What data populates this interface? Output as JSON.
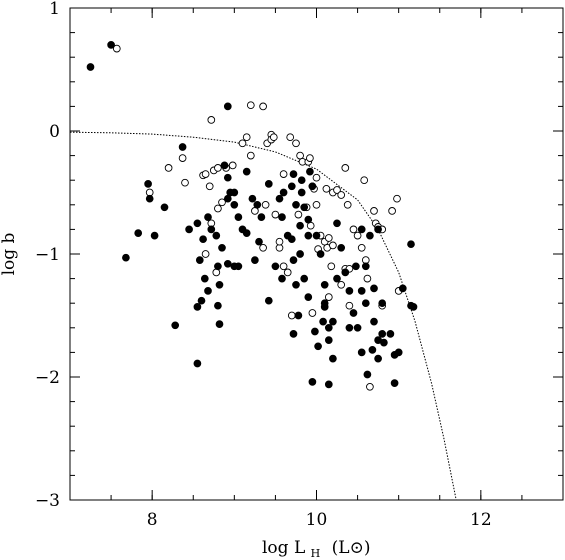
{
  "chart_data": {
    "type": "scatter",
    "xlabel": "log L",
    "xlabel_subscript": "H",
    "xlabel_unit": "(L⊙)",
    "ylabel": "log b",
    "xlim": [
      7.0,
      13.0
    ],
    "ylim": [
      -3.0,
      1.0
    ],
    "x_ticks": [
      8,
      10,
      12
    ],
    "x_tick_labels": [
      "8",
      "10",
      "12"
    ],
    "y_ticks": [
      1,
      0,
      -1,
      -2,
      -3
    ],
    "y_tick_labels": [
      "1",
      "0",
      "−1",
      "−2",
      "−3"
    ],
    "x_minor_step": 0.5,
    "y_minor_step": 0.2,
    "grid": false,
    "legend": "none",
    "marker_color": "#000000",
    "series": [
      {
        "marker": "filled-circle",
        "points": [
          [
            7.5,
            0.7
          ],
          [
            7.25,
            0.52
          ],
          [
            7.68,
            -1.03
          ],
          [
            7.83,
            -0.83
          ],
          [
            7.97,
            -0.55
          ],
          [
            8.03,
            -0.85
          ],
          [
            8.15,
            -0.62
          ],
          [
            7.95,
            -0.43
          ],
          [
            8.37,
            -0.13
          ],
          [
            8.45,
            -0.8
          ],
          [
            8.55,
            -0.75
          ],
          [
            8.62,
            -0.88
          ],
          [
            8.58,
            -1.05
          ],
          [
            8.64,
            -1.2
          ],
          [
            8.6,
            -1.38
          ],
          [
            8.68,
            -1.3
          ],
          [
            8.55,
            -1.43
          ],
          [
            8.8,
            -1.1
          ],
          [
            8.82,
            -1.25
          ],
          [
            8.8,
            -1.42
          ],
          [
            8.82,
            -1.57
          ],
          [
            8.28,
            -1.58
          ],
          [
            8.55,
            -1.89
          ],
          [
            8.68,
            -0.7
          ],
          [
            8.72,
            -0.8
          ],
          [
            8.78,
            -0.85
          ],
          [
            8.85,
            -0.95
          ],
          [
            8.88,
            -0.28
          ],
          [
            8.92,
            -0.38
          ],
          [
            8.95,
            -0.5
          ],
          [
            9.0,
            -0.5
          ],
          [
            8.92,
            -0.55
          ],
          [
            9.0,
            -0.6
          ],
          [
            9.05,
            -0.7
          ],
          [
            9.1,
            -0.8
          ],
          [
            9.15,
            -0.83
          ],
          [
            8.92,
            -1.08
          ],
          [
            9.0,
            -1.1
          ],
          [
            9.05,
            -1.1
          ],
          [
            8.92,
            0.2
          ],
          [
            9.15,
            -0.33
          ],
          [
            9.22,
            -0.55
          ],
          [
            9.28,
            -0.6
          ],
          [
            9.33,
            -0.7
          ],
          [
            9.3,
            -0.9
          ],
          [
            9.25,
            -1.05
          ],
          [
            9.42,
            -1.38
          ],
          [
            9.5,
            -1.1
          ],
          [
            9.55,
            -0.55
          ],
          [
            9.58,
            -0.7
          ],
          [
            9.65,
            -0.85
          ],
          [
            9.72,
            -1.05
          ],
          [
            9.75,
            -1.25
          ],
          [
            9.78,
            -1.5
          ],
          [
            9.72,
            -1.65
          ],
          [
            9.42,
            -0.43
          ],
          [
            9.6,
            -0.5
          ],
          [
            9.7,
            -0.45
          ],
          [
            9.82,
            -0.5
          ],
          [
            9.85,
            -0.62
          ],
          [
            9.9,
            -0.72
          ],
          [
            9.9,
            -0.85
          ],
          [
            9.85,
            -1.2
          ],
          [
            9.9,
            -1.35
          ],
          [
            9.98,
            -1.63
          ],
          [
            9.92,
            -0.33
          ],
          [
            9.82,
            -0.4
          ],
          [
            10.0,
            -0.85
          ],
          [
            10.05,
            -1.0
          ],
          [
            10.1,
            -1.25
          ],
          [
            10.1,
            -1.4
          ],
          [
            10.15,
            -1.6
          ],
          [
            10.2,
            -1.55
          ],
          [
            10.2,
            -1.85
          ],
          [
            10.15,
            -1.7
          ],
          [
            10.25,
            -1.2
          ],
          [
            10.25,
            -0.75
          ],
          [
            10.3,
            -0.95
          ],
          [
            10.35,
            -1.15
          ],
          [
            10.4,
            -1.3
          ],
          [
            10.45,
            -1.48
          ],
          [
            10.5,
            -1.6
          ],
          [
            10.55,
            -1.3
          ],
          [
            10.6,
            -1.4
          ],
          [
            10.7,
            -1.28
          ],
          [
            10.7,
            -1.55
          ],
          [
            10.75,
            -1.7
          ],
          [
            10.8,
            -1.4
          ],
          [
            10.8,
            -1.65
          ],
          [
            10.55,
            -1.8
          ],
          [
            10.62,
            -1.98
          ],
          [
            10.68,
            -1.78
          ],
          [
            10.75,
            -1.85
          ],
          [
            10.82,
            -1.72
          ],
          [
            10.95,
            -1.82
          ],
          [
            10.9,
            -1.65
          ],
          [
            10.6,
            -1.1
          ],
          [
            10.55,
            -0.8
          ],
          [
            10.65,
            -0.85
          ],
          [
            10.75,
            -0.8
          ],
          [
            11.15,
            -0.92
          ],
          [
            11.15,
            -1.42
          ],
          [
            11.18,
            -1.43
          ],
          [
            11.0,
            -1.8
          ],
          [
            10.95,
            -2.05
          ],
          [
            10.15,
            -2.06
          ],
          [
            9.95,
            -2.04
          ],
          [
            11.05,
            -1.28
          ],
          [
            10.48,
            -1.1
          ],
          [
            10.4,
            -1.6
          ],
          [
            10.1,
            -1.43
          ],
          [
            10.08,
            -1.55
          ],
          [
            9.8,
            -0.77
          ],
          [
            9.8,
            -1.0
          ],
          [
            9.75,
            -0.6
          ],
          [
            9.95,
            -0.45
          ],
          [
            9.72,
            -0.35
          ],
          [
            9.7,
            -0.88
          ],
          [
            9.58,
            -1.2
          ],
          [
            10.02,
            -1.75
          ]
        ]
      },
      {
        "marker": "open-circle",
        "points": [
          [
            7.57,
            0.67
          ],
          [
            7.97,
            -0.5
          ],
          [
            8.2,
            -0.3
          ],
          [
            8.37,
            -0.22
          ],
          [
            8.4,
            -0.42
          ],
          [
            8.62,
            -0.36
          ],
          [
            8.65,
            -0.35
          ],
          [
            8.75,
            -0.32
          ],
          [
            8.8,
            -0.3
          ],
          [
            8.7,
            -0.45
          ],
          [
            8.72,
            -0.75
          ],
          [
            8.65,
            -1.0
          ],
          [
            8.78,
            -1.15
          ],
          [
            8.8,
            -0.63
          ],
          [
            8.85,
            -0.58
          ],
          [
            8.9,
            -0.3
          ],
          [
            8.98,
            -0.28
          ],
          [
            8.72,
            0.09
          ],
          [
            9.1,
            -0.1
          ],
          [
            9.15,
            -0.05
          ],
          [
            9.2,
            0.21
          ],
          [
            9.35,
            0.2
          ],
          [
            9.2,
            -0.2
          ],
          [
            9.25,
            -0.65
          ],
          [
            9.35,
            -0.95
          ],
          [
            9.4,
            -0.1
          ],
          [
            9.45,
            -0.03
          ],
          [
            9.45,
            -0.07
          ],
          [
            9.48,
            -0.05
          ],
          [
            9.5,
            -0.68
          ],
          [
            9.55,
            -0.95
          ],
          [
            9.6,
            -1.1
          ],
          [
            9.65,
            -1.15
          ],
          [
            9.68,
            -0.05
          ],
          [
            9.75,
            -0.1
          ],
          [
            9.8,
            -0.2
          ],
          [
            9.83,
            -0.25
          ],
          [
            9.9,
            -0.25
          ],
          [
            9.92,
            -0.22
          ],
          [
            9.95,
            -0.45
          ],
          [
            9.97,
            -0.47
          ],
          [
            10.0,
            -0.6
          ],
          [
            10.05,
            -0.85
          ],
          [
            10.1,
            -0.9
          ],
          [
            10.13,
            -0.95
          ],
          [
            10.15,
            -0.87
          ],
          [
            10.18,
            -1.1
          ],
          [
            10.12,
            -0.47
          ],
          [
            10.2,
            -0.5
          ],
          [
            10.25,
            -0.48
          ],
          [
            10.3,
            -0.52
          ],
          [
            10.35,
            -0.3
          ],
          [
            10.38,
            -0.6
          ],
          [
            10.45,
            -0.8
          ],
          [
            10.5,
            -0.85
          ],
          [
            10.55,
            -0.95
          ],
          [
            10.6,
            -1.05
          ],
          [
            10.62,
            -1.2
          ],
          [
            10.7,
            -0.65
          ],
          [
            10.72,
            -0.75
          ],
          [
            10.75,
            -0.78
          ],
          [
            10.8,
            -0.8
          ],
          [
            10.92,
            -0.65
          ],
          [
            10.98,
            -0.55
          ],
          [
            11.0,
            -1.3
          ],
          [
            10.8,
            -1.42
          ],
          [
            10.65,
            -2.08
          ],
          [
            10.4,
            -1.42
          ],
          [
            9.95,
            -1.48
          ],
          [
            9.7,
            -1.5
          ],
          [
            10.3,
            -1.25
          ],
          [
            10.35,
            -1.12
          ],
          [
            10.4,
            -1.12
          ],
          [
            10.15,
            -1.35
          ],
          [
            9.78,
            -0.68
          ],
          [
            9.88,
            -0.62
          ],
          [
            9.93,
            -0.77
          ],
          [
            10.0,
            -0.38
          ],
          [
            10.02,
            -0.96
          ],
          [
            9.6,
            -0.35
          ],
          [
            9.38,
            -0.6
          ],
          [
            10.2,
            -0.93
          ],
          [
            10.58,
            -0.4
          ],
          [
            9.55,
            -0.9
          ]
        ]
      }
    ],
    "annotations": [
      {
        "type": "dotted-curve",
        "points": [
          [
            7.0,
            -0.01
          ],
          [
            7.5,
            -0.015
          ],
          [
            8.0,
            -0.025
          ],
          [
            8.5,
            -0.05
          ],
          [
            9.0,
            -0.09
          ],
          [
            9.5,
            -0.17
          ],
          [
            10.0,
            -0.31
          ],
          [
            10.5,
            -0.56
          ],
          [
            10.75,
            -0.8
          ],
          [
            11.0,
            -1.15
          ],
          [
            11.2,
            -1.55
          ],
          [
            11.4,
            -2.05
          ],
          [
            11.55,
            -2.5
          ],
          [
            11.7,
            -3.0
          ]
        ]
      }
    ]
  }
}
